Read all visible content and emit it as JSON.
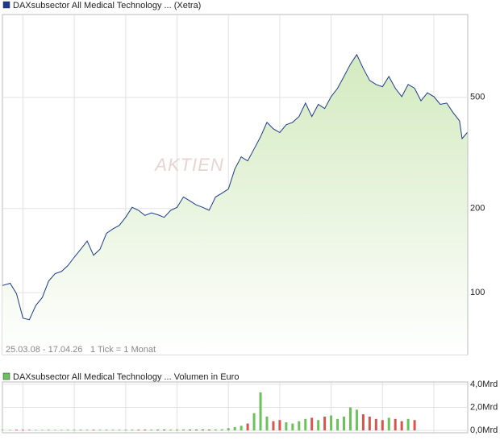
{
  "chart_data": [
    {
      "type": "line",
      "title": "DAXsubsector All Medical Technology ... (Xetra)",
      "range_note": "25.03.08 - 17.04.26",
      "tick_note": "1 Tick = 1 Monat",
      "watermark": "AKTIEN",
      "log_scale": true,
      "grid": true,
      "x": [
        2008.2,
        2008.5,
        2008.75,
        2009.0,
        2009.25,
        2009.5,
        2009.75,
        2010.0,
        2010.25,
        2010.5,
        2010.75,
        2011.0,
        2011.25,
        2011.5,
        2011.75,
        2012.0,
        2012.25,
        2012.5,
        2012.75,
        2013.0,
        2013.25,
        2013.5,
        2013.75,
        2014.0,
        2014.25,
        2014.5,
        2014.75,
        2015.0,
        2015.25,
        2015.5,
        2015.75,
        2016.0,
        2016.25,
        2016.5,
        2016.75,
        2017.0,
        2017.25,
        2017.5,
        2017.75,
        2018.0,
        2018.25,
        2018.5,
        2018.75,
        2019.0,
        2019.25,
        2019.5,
        2019.75,
        2020.0,
        2020.25,
        2020.5,
        2020.75,
        2021.0,
        2021.25,
        2021.5,
        2021.75,
        2022.0,
        2022.25,
        2022.5,
        2022.75,
        2023.0,
        2023.25,
        2023.5,
        2023.75,
        2024.0,
        2024.25,
        2024.5,
        2024.75,
        2025.0,
        2025.25,
        2025.5,
        2025.75,
        2026.0,
        2026.1,
        2026.3
      ],
      "series": [
        {
          "name": "DAXsubsector All Medical Technology ... (Xetra)",
          "color": "#1c3b8f",
          "values": [
            106,
            108,
            99,
            81,
            80,
            90,
            96,
            110,
            117,
            119,
            125,
            134,
            143,
            153,
            136,
            143,
            163,
            169,
            174,
            186,
            202,
            197,
            189,
            193,
            190,
            186,
            197,
            202,
            220,
            213,
            206,
            202,
            197,
            220,
            227,
            235,
            277,
            306,
            296,
            327,
            361,
            407,
            386,
            374,
            399,
            407,
            427,
            477,
            427,
            472,
            456,
            503,
            539,
            594,
            657,
            711,
            635,
            575,
            556,
            546,
            594,
            539,
            503,
            556,
            539,
            486,
            519,
            503,
            472,
            477,
            441,
            412,
            356,
            374
          ]
        }
      ],
      "xlim": [
        2008.2,
        2026.32
      ],
      "xticks": [
        2009,
        2011,
        2013,
        2015,
        2017,
        2019,
        2021,
        2023,
        2025
      ],
      "ylim": [
        60,
        990
      ],
      "yticks": [
        100,
        200,
        500
      ],
      "fill_top": "#d3eabf",
      "fill_bottom": "#ffffff"
    },
    {
      "type": "bar",
      "title": "DAXsubsector All Medical Technology ... Volumen in Euro",
      "color": "#6cc25a",
      "up_color": "#6cc25a",
      "down_color": "#d9534f",
      "x": [
        2008.2,
        2008.5,
        2008.75,
        2009.0,
        2009.25,
        2009.5,
        2009.75,
        2010.0,
        2010.25,
        2010.5,
        2010.75,
        2011.0,
        2011.25,
        2011.5,
        2011.75,
        2012.0,
        2012.25,
        2012.5,
        2012.75,
        2013.0,
        2013.25,
        2013.5,
        2013.75,
        2014.0,
        2014.25,
        2014.5,
        2014.75,
        2015.0,
        2015.25,
        2015.5,
        2015.75,
        2016.0,
        2016.25,
        2016.5,
        2016.75,
        2017.0,
        2017.25,
        2017.5,
        2017.75,
        2018.0,
        2018.25,
        2018.5,
        2018.75,
        2019.0,
        2019.25,
        2019.5,
        2019.75,
        2020.0,
        2020.25,
        2020.5,
        2020.75,
        2021.0,
        2021.25,
        2021.5,
        2021.75,
        2022.0,
        2022.25,
        2022.5,
        2022.75,
        2023.0,
        2023.25,
        2023.5,
        2023.75,
        2024.0,
        2024.25,
        2024.5,
        2024.75,
        2025.0,
        2025.25,
        2025.5,
        2025.75,
        2026.0,
        2026.1,
        2026.3
      ],
      "values": [
        0.05,
        0.05,
        0.06,
        0.06,
        0.05,
        0.05,
        0.05,
        0.06,
        0.05,
        0.05,
        0.06,
        0.06,
        0.07,
        0.06,
        0.06,
        0.06,
        0.07,
        0.06,
        0.06,
        0.07,
        0.07,
        0.06,
        0.07,
        0.07,
        0.07,
        0.08,
        0.07,
        0.08,
        0.09,
        0.08,
        0.08,
        0.09,
        0.08,
        0.09,
        0.1,
        0.2,
        0.3,
        0.4,
        0.6,
        1.5,
        3.3,
        1.2,
        0.8,
        0.9,
        0.7,
        0.6,
        0.8,
        1.0,
        1.1,
        0.9,
        1.2,
        1.3,
        1.0,
        1.2,
        2.0,
        1.8,
        1.4,
        1.2,
        1.0,
        0.9,
        1.1,
        1.0,
        0.8,
        1.0,
        0.9,
        null,
        null,
        null,
        null,
        null,
        null,
        null,
        null,
        null
      ],
      "xlim": [
        2008.2,
        2026.32
      ],
      "ylim": [
        -0.2,
        4.2
      ],
      "yticks": [
        {
          "value": 0,
          "label": "0,0Mrd"
        },
        {
          "value": 2,
          "label": "2,0Mrd"
        },
        {
          "value": 4,
          "label": "4,0Mrd"
        }
      ],
      "grid": true
    }
  ]
}
